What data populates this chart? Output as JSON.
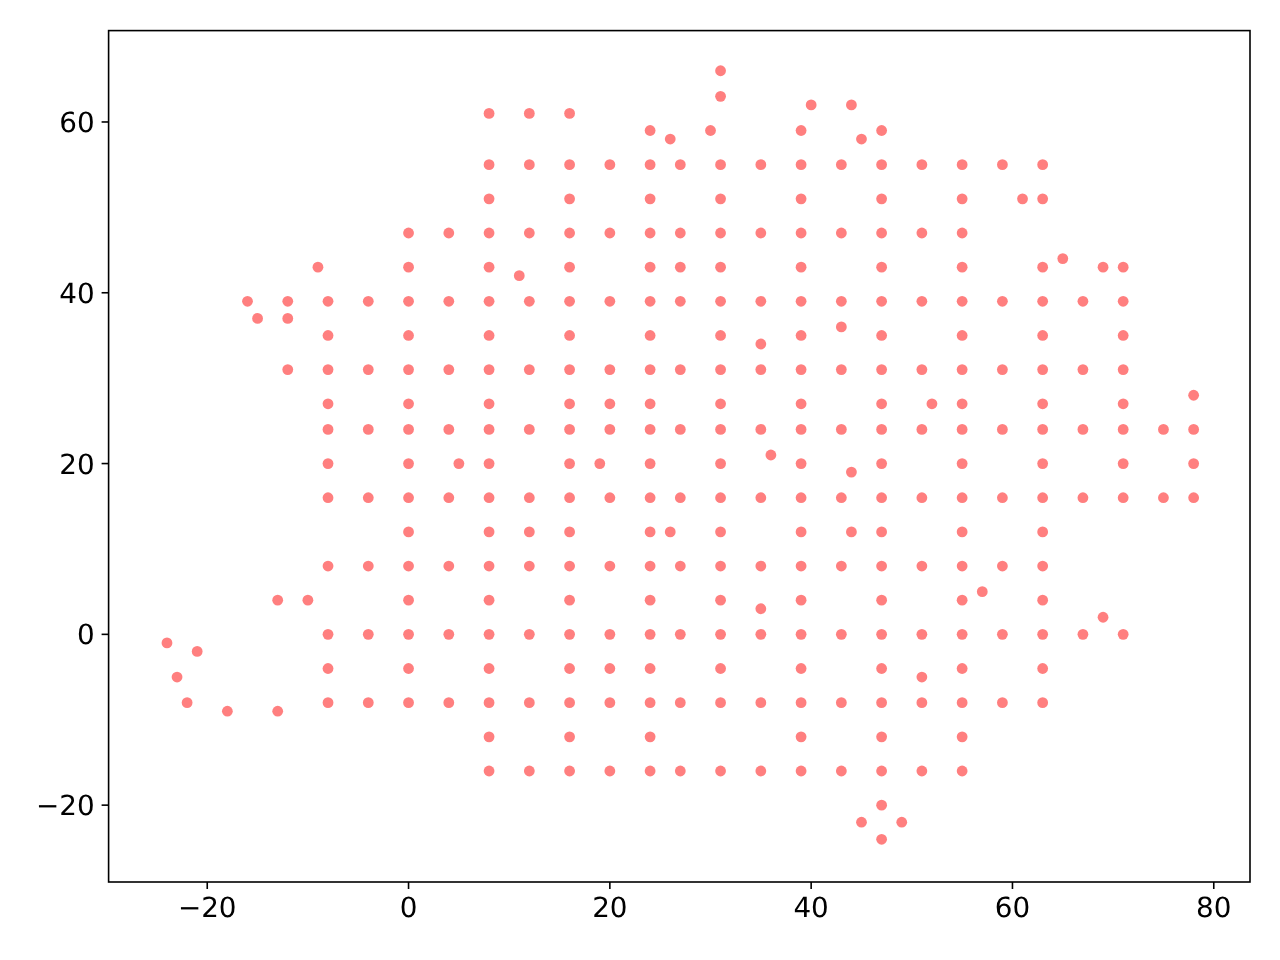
{
  "chart_data": {
    "type": "scatter",
    "marker": "circle",
    "xlim": [
      -29.8,
      83.6
    ],
    "ylim": [
      -29,
      70.7
    ],
    "xticks": [
      -20,
      0,
      20,
      40,
      60,
      80
    ],
    "yticks": [
      -20,
      0,
      20,
      40,
      60
    ],
    "series": [
      {
        "color": "#ff0000",
        "x": [
          8,
          12,
          16,
          20,
          24,
          27,
          31,
          35,
          39,
          43,
          47,
          51,
          55,
          59,
          63,
          0,
          4,
          8,
          12,
          16,
          20,
          24,
          27,
          31,
          35,
          39,
          43,
          47,
          51,
          55,
          -16,
          -12,
          -8,
          -4,
          0,
          4,
          8,
          12,
          16,
          20,
          24,
          27,
          31,
          35,
          39,
          43,
          47,
          51,
          55,
          59,
          63,
          67,
          71,
          -12,
          -8,
          -4,
          0,
          4,
          8,
          12,
          16,
          20,
          24,
          27,
          31,
          35,
          39,
          43,
          47,
          51,
          55,
          59,
          63,
          67,
          71,
          -8,
          -4,
          0,
          4,
          8,
          12,
          16,
          20,
          24,
          27,
          31,
          35,
          39,
          43,
          47,
          51,
          55,
          59,
          63,
          67,
          71,
          75,
          78,
          -8,
          -4,
          0,
          4,
          8,
          12,
          16,
          20,
          24,
          27,
          31,
          35,
          39,
          43,
          47,
          51,
          55,
          59,
          63,
          67,
          71,
          75,
          78,
          -8,
          -4,
          0,
          4,
          8,
          12,
          16,
          20,
          24,
          27,
          31,
          35,
          39,
          43,
          47,
          51,
          55,
          59,
          63,
          -8,
          -4,
          0,
          4,
          8,
          12,
          16,
          20,
          24,
          27,
          31,
          35,
          39,
          43,
          47,
          51,
          55,
          59,
          63,
          67,
          71,
          -22,
          -18,
          -13,
          -8,
          -4,
          0,
          4,
          8,
          12,
          16,
          20,
          24,
          27,
          31,
          35,
          39,
          43,
          47,
          51,
          55,
          59,
          63,
          8,
          12,
          16,
          20,
          24,
          27,
          31,
          35,
          39,
          43,
          47,
          51,
          55,
          -24,
          -21,
          -23,
          -15,
          -12,
          -8,
          -8,
          -8,
          -8,
          -9,
          -13,
          -10,
          0,
          0,
          0,
          0,
          0,
          0,
          0,
          8,
          8,
          8,
          8,
          8,
          8,
          8,
          8,
          8,
          8,
          12,
          16,
          16,
          16,
          16,
          16,
          16,
          16,
          16,
          16,
          16,
          24,
          24,
          24,
          24,
          24,
          24,
          24,
          24,
          24,
          24,
          31,
          31,
          31,
          31,
          31,
          31,
          31,
          31,
          30,
          31,
          31,
          39,
          39,
          39,
          39,
          39,
          39,
          39,
          39,
          39,
          39,
          40,
          44,
          45,
          47,
          47,
          45,
          49,
          47,
          47,
          47,
          47,
          47,
          47,
          47,
          47,
          47,
          47,
          55,
          55,
          55,
          55,
          55,
          55,
          55,
          55,
          55,
          63,
          63,
          63,
          63,
          63,
          63,
          63,
          63,
          61,
          71,
          71,
          71,
          71,
          69,
          78,
          78,
          65,
          69,
          26,
          27,
          20,
          5,
          11,
          19,
          35,
          43,
          52,
          36,
          44,
          12,
          26,
          44,
          35,
          51,
          57,
          20
        ],
        "values": [
          55,
          55,
          55,
          55,
          55,
          55,
          55,
          55,
          55,
          55,
          55,
          55,
          55,
          55,
          55,
          47,
          47,
          47,
          47,
          47,
          47,
          47,
          47,
          47,
          47,
          47,
          47,
          47,
          47,
          47,
          39,
          39,
          39,
          39,
          39,
          39,
          39,
          39,
          39,
          39,
          39,
          39,
          39,
          39,
          39,
          39,
          39,
          39,
          39,
          39,
          39,
          39,
          39,
          31,
          31,
          31,
          31,
          31,
          31,
          31,
          31,
          31,
          31,
          31,
          31,
          31,
          31,
          31,
          31,
          31,
          31,
          31,
          31,
          31,
          31,
          24,
          24,
          24,
          24,
          24,
          24,
          24,
          24,
          24,
          24,
          24,
          24,
          24,
          24,
          24,
          24,
          24,
          24,
          24,
          24,
          24,
          24,
          24,
          16,
          16,
          16,
          16,
          16,
          16,
          16,
          16,
          16,
          16,
          16,
          16,
          16,
          16,
          16,
          16,
          16,
          16,
          16,
          16,
          16,
          16,
          16,
          8,
          8,
          8,
          8,
          8,
          8,
          8,
          8,
          8,
          8,
          8,
          8,
          8,
          8,
          8,
          8,
          8,
          8,
          8,
          0,
          0,
          0,
          0,
          0,
          0,
          0,
          0,
          0,
          0,
          0,
          0,
          0,
          0,
          0,
          0,
          0,
          0,
          0,
          0,
          0,
          -8,
          -9,
          -9,
          -8,
          -8,
          -8,
          -8,
          -8,
          -8,
          -8,
          -8,
          -8,
          -8,
          -8,
          -8,
          -8,
          -8,
          -8,
          -8,
          -8,
          -8,
          -8,
          -16,
          -16,
          -16,
          -16,
          -16,
          -16,
          -16,
          -16,
          -16,
          -16,
          -16,
          -16,
          -16,
          -1,
          -2,
          -5,
          37,
          37,
          -4,
          20,
          27,
          35,
          43,
          4,
          4,
          -4,
          4,
          12,
          20,
          27,
          35,
          43,
          -12,
          -4,
          4,
          12,
          20,
          27,
          35,
          43,
          51,
          61,
          61,
          61,
          -12,
          -4,
          4,
          12,
          20,
          27,
          35,
          43,
          51,
          -12,
          -4,
          4,
          12,
          20,
          27,
          35,
          43,
          51,
          59,
          -4,
          4,
          12,
          20,
          27,
          35,
          43,
          51,
          59,
          63,
          66,
          -12,
          -4,
          4,
          12,
          20,
          27,
          35,
          43,
          51,
          59,
          62,
          62,
          58,
          -24,
          -20,
          -22,
          -22,
          -12,
          -4,
          4,
          12,
          20,
          27,
          35,
          43,
          51,
          59,
          -12,
          -4,
          4,
          12,
          20,
          27,
          35,
          43,
          51,
          -4,
          4,
          12,
          20,
          27,
          35,
          43,
          51,
          51,
          20,
          27,
          35,
          43,
          2,
          20,
          28,
          44,
          43,
          58,
          43,
          27,
          20,
          42,
          20,
          34,
          36,
          27,
          21,
          19,
          12,
          12,
          12,
          3,
          -5,
          5,
          -4
        ]
      }
    ]
  }
}
